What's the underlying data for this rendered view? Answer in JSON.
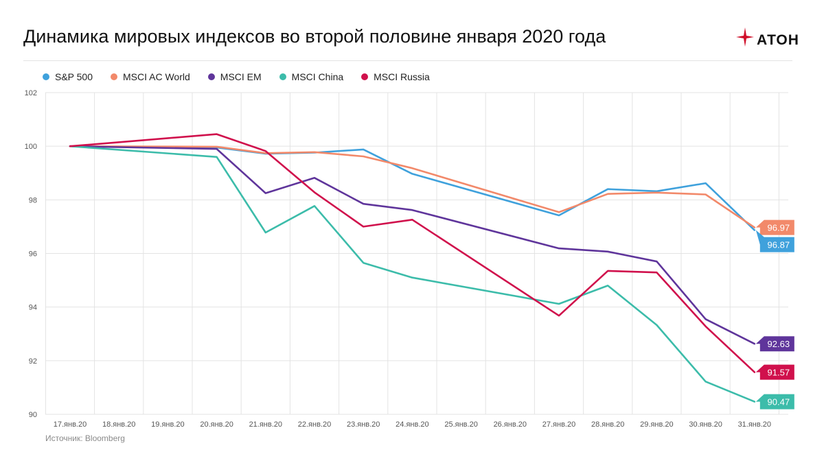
{
  "title": "Динамика мировых индексов во второй половине января 2020 года",
  "brand": {
    "name": "АТОН",
    "color": "#d0112b"
  },
  "source": "Источник: Bloomberg",
  "chart_data": {
    "type": "line",
    "title": "Динамика мировых индексов во второй половине января 2020 года",
    "xlabel": "",
    "ylabel": "",
    "x": [
      "17.янв.20",
      "18.янв.20",
      "19.янв.20",
      "20.янв.20",
      "21.янв.20",
      "22.янв.20",
      "23.янв.20",
      "24.янв.20",
      "25.янв.20",
      "26.янв.20",
      "27.янв.20",
      "28.янв.20",
      "29.янв.20",
      "30.янв.20",
      "31.янв.20"
    ],
    "ylim": [
      90,
      102
    ],
    "yticks": [
      90,
      92,
      94,
      96,
      98,
      100,
      102
    ],
    "grid": true,
    "legend": "top-left",
    "series": [
      {
        "name": "S&P 500",
        "color": "#3fa1dc",
        "points": [
          [
            0,
            100
          ],
          [
            3,
            99.95
          ],
          [
            4,
            99.72
          ],
          [
            5,
            99.76
          ],
          [
            6,
            99.88
          ],
          [
            7,
            98.97
          ],
          [
            10,
            97.42
          ],
          [
            11,
            98.4
          ],
          [
            12,
            98.32
          ],
          [
            13,
            98.62
          ],
          [
            14,
            96.87
          ]
        ],
        "end_label": "96.87"
      },
      {
        "name": "MSCI AC World",
        "color": "#f2896a",
        "points": [
          [
            0,
            100
          ],
          [
            3,
            99.98
          ],
          [
            4,
            99.74
          ],
          [
            5,
            99.78
          ],
          [
            6,
            99.62
          ],
          [
            7,
            99.18
          ],
          [
            10,
            97.54
          ],
          [
            11,
            98.22
          ],
          [
            12,
            98.27
          ],
          [
            13,
            98.2
          ],
          [
            14,
            96.97
          ]
        ],
        "end_label": "96.97"
      },
      {
        "name": "MSCI EM",
        "color": "#5f359b",
        "points": [
          [
            0,
            100
          ],
          [
            3,
            99.9
          ],
          [
            4,
            98.25
          ],
          [
            5,
            98.82
          ],
          [
            6,
            97.85
          ],
          [
            7,
            97.62
          ],
          [
            10,
            96.19
          ],
          [
            11,
            96.07
          ],
          [
            12,
            95.7
          ],
          [
            13,
            93.55
          ],
          [
            14,
            92.63
          ]
        ],
        "end_label": "92.63"
      },
      {
        "name": "MSCI China",
        "color": "#3cbcaa",
        "points": [
          [
            0,
            100
          ],
          [
            3,
            99.6
          ],
          [
            4,
            96.78
          ],
          [
            5,
            97.77
          ],
          [
            6,
            95.65
          ],
          [
            7,
            95.1
          ],
          [
            10,
            94.12
          ],
          [
            11,
            94.8
          ],
          [
            12,
            93.33
          ],
          [
            13,
            91.22
          ],
          [
            14,
            90.47
          ]
        ],
        "end_label": "90.47"
      },
      {
        "name": "MSCI Russia",
        "color": "#d0104c",
        "points": [
          [
            0,
            100
          ],
          [
            3,
            100.45
          ],
          [
            4,
            99.82
          ],
          [
            5,
            98.28
          ],
          [
            6,
            97.0
          ],
          [
            7,
            97.26
          ],
          [
            10,
            93.68
          ],
          [
            11,
            95.35
          ],
          [
            12,
            95.29
          ],
          [
            13,
            93.28
          ],
          [
            14,
            91.57
          ]
        ],
        "end_label": "91.57"
      }
    ]
  }
}
